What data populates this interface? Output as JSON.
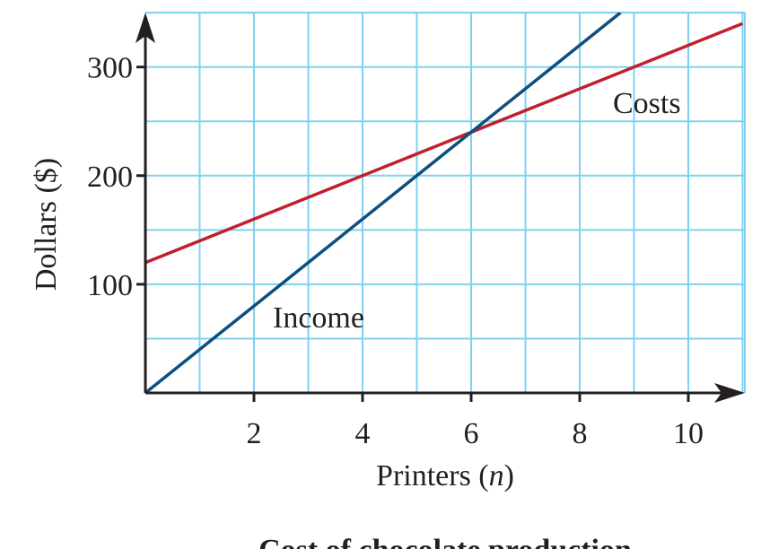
{
  "chart_data": {
    "type": "line",
    "title": "Cost of chocolate production",
    "xlabel": "Printers (",
    "xlabel_var": "n",
    "xlabel_close": ")",
    "ylabel": "Dollars ($)",
    "xlim": [
      0,
      11
    ],
    "ylim": [
      0,
      350
    ],
    "x_ticks": [
      2,
      4,
      6,
      8,
      10
    ],
    "x_tick_labels": [
      "2",
      "4",
      "6",
      "8",
      "10"
    ],
    "y_ticks": [
      100,
      200,
      300
    ],
    "y_tick_labels": [
      "100",
      "200",
      "300"
    ],
    "grid": true,
    "x_grid_step": 1,
    "y_grid_step": 50,
    "series": [
      {
        "name": "Costs",
        "x": [
          0,
          11
        ],
        "y": [
          120,
          340
        ],
        "color": "#c0202e"
      },
      {
        "name": "Income",
        "x": [
          0,
          8.75
        ],
        "y": [
          0,
          350
        ],
        "color": "#0e4f7f"
      }
    ],
    "grid_color": "#7dd3ef",
    "axis_color": "#231f20"
  }
}
